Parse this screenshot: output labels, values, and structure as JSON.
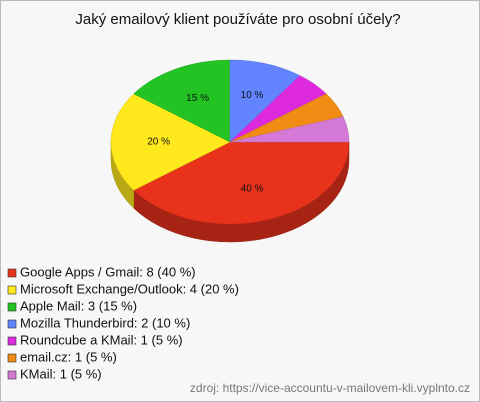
{
  "chart_data": {
    "type": "pie",
    "title": "Jaký emailový klient používáte pro osobní účely?",
    "categories": [
      "Google Apps / Gmail: 8 (40 %)",
      "Microsoft Exchange/Outlook: 4 (20 %)",
      "Apple Mail: 3 (15 %)",
      "Mozilla Thunderbird: 2 (10 %)",
      "Roundcube a KMail: 1 (5 %)",
      "email.cz: 1 (5 %)",
      "KMail: 1 (5 %)"
    ],
    "values": [
      40,
      20,
      15,
      10,
      5,
      5,
      5
    ],
    "value_labels": [
      "40 %",
      "20 %",
      "15 %",
      "10 %",
      null,
      null,
      null
    ],
    "colors": [
      "#e8321c",
      "#ffe91c",
      "#22c322",
      "#6284ff",
      "#de2ade",
      "#f08c14",
      "#d47ad6"
    ],
    "source": "zdroj: https://vice-accountu-v-mailovem-kli.vyplnto.cz"
  }
}
